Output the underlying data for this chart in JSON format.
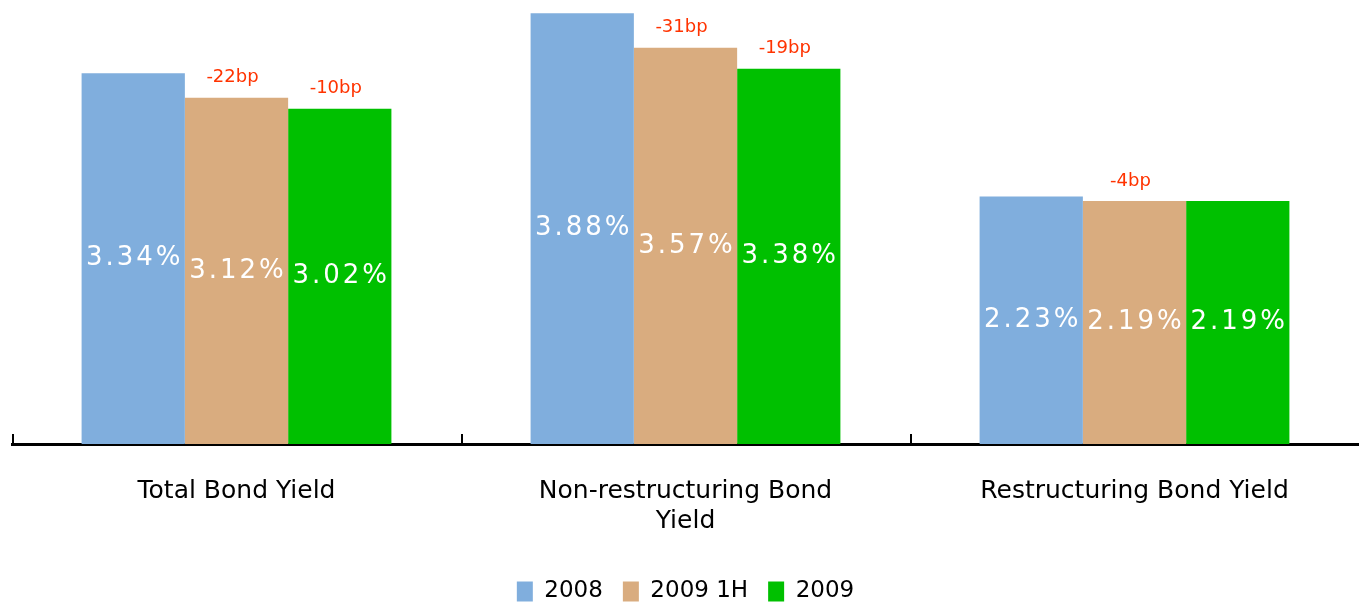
{
  "chart_data": {
    "type": "bar",
    "categories": [
      "Total Bond Yield",
      "Non-restructuring Bond Yield",
      "Restructuring Bond Yield"
    ],
    "series": [
      {
        "name": "2008",
        "color": "#80aedd",
        "values": [
          3.34,
          3.88,
          2.23
        ],
        "value_labels": [
          "3.34%",
          "3.88%",
          "2.23%"
        ]
      },
      {
        "name": "2009 1H",
        "color": "#d9ac7f",
        "values": [
          3.12,
          3.57,
          2.19
        ],
        "value_labels": [
          "3.12%",
          "3.57%",
          "2.19%"
        ]
      },
      {
        "name": "2009",
        "color": "#00c000",
        "values": [
          3.02,
          3.38,
          2.19
        ],
        "value_labels": [
          "3.02%",
          "3.38%",
          "2.19%"
        ]
      }
    ],
    "annotations": [
      {
        "text": "-22bp",
        "x": "Total Bond Yield",
        "y": 3.12
      },
      "-10bp",
      {
        "text": "-31bp",
        "x": "Non-restructuring Bond Yield",
        "y": 3.57
      },
      "-19bp",
      {
        "text": "-4bp",
        "x": "Restructuring Bond Yield",
        "y": 2.19
      }
    ],
    "legend": "bottom"
  }
}
